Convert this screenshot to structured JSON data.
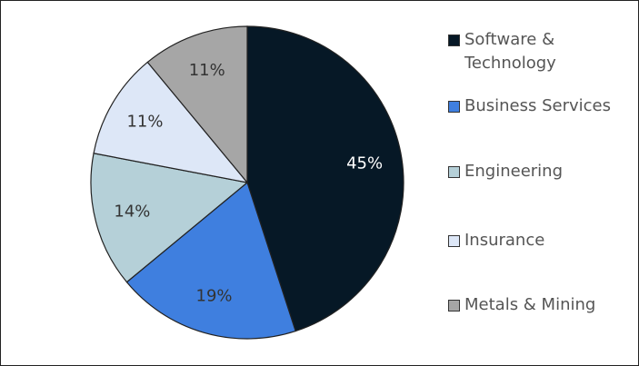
{
  "chart_data": {
    "type": "pie",
    "categories": [
      "Software & Technology",
      "Business Services",
      "Engineering",
      "Insurance",
      "Metals & Mining"
    ],
    "values": [
      45,
      19,
      14,
      11,
      11
    ],
    "value_labels": [
      "45%",
      "19%",
      "14%",
      "11%",
      "11%"
    ],
    "colors": [
      "#061826",
      "#3f7fdf",
      "#b5d0d8",
      "#dde7f7",
      "#a6a6a6"
    ],
    "label_colors": [
      "#ffffff",
      "#333333",
      "#333333",
      "#333333",
      "#333333"
    ],
    "legend": "right"
  }
}
